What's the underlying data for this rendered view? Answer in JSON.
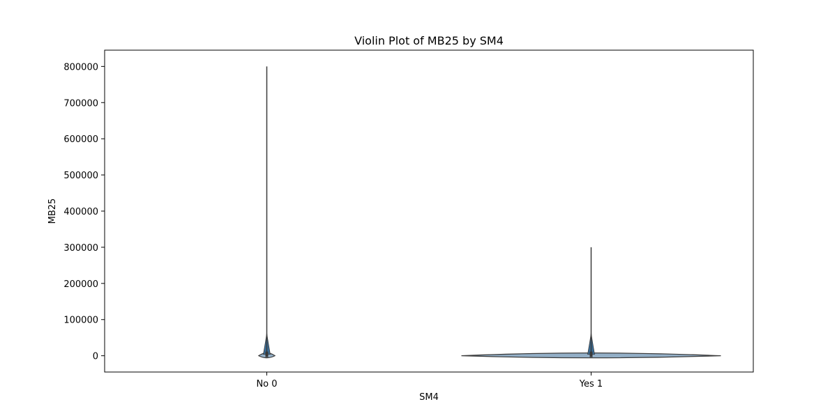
{
  "chart_data": {
    "type": "violin",
    "title": "Violin Plot of MB25 by SM4",
    "xlabel": "SM4",
    "ylabel": "MB25",
    "ylim": [
      -45000,
      845000
    ],
    "yticks": [
      0,
      100000,
      200000,
      300000,
      400000,
      500000,
      600000,
      700000,
      800000
    ],
    "ytick_labels": [
      "0",
      "100000",
      "200000",
      "300000",
      "400000",
      "500000",
      "600000",
      "700000",
      "800000"
    ],
    "categories": [
      "No 0",
      "Yes 1"
    ],
    "violins": [
      {
        "category": "No 0",
        "min": 0,
        "max": 800000,
        "median": 0,
        "relative_width": 0.05
      },
      {
        "category": "Yes 1",
        "min": 0,
        "max": 300000,
        "median": 0,
        "relative_width": 0.8
      }
    ],
    "colors": {
      "violin_fill": "#3a6e99",
      "violin_edge": "#3a3a3a",
      "axis": "#000000"
    },
    "grid": false,
    "legend": "none"
  }
}
